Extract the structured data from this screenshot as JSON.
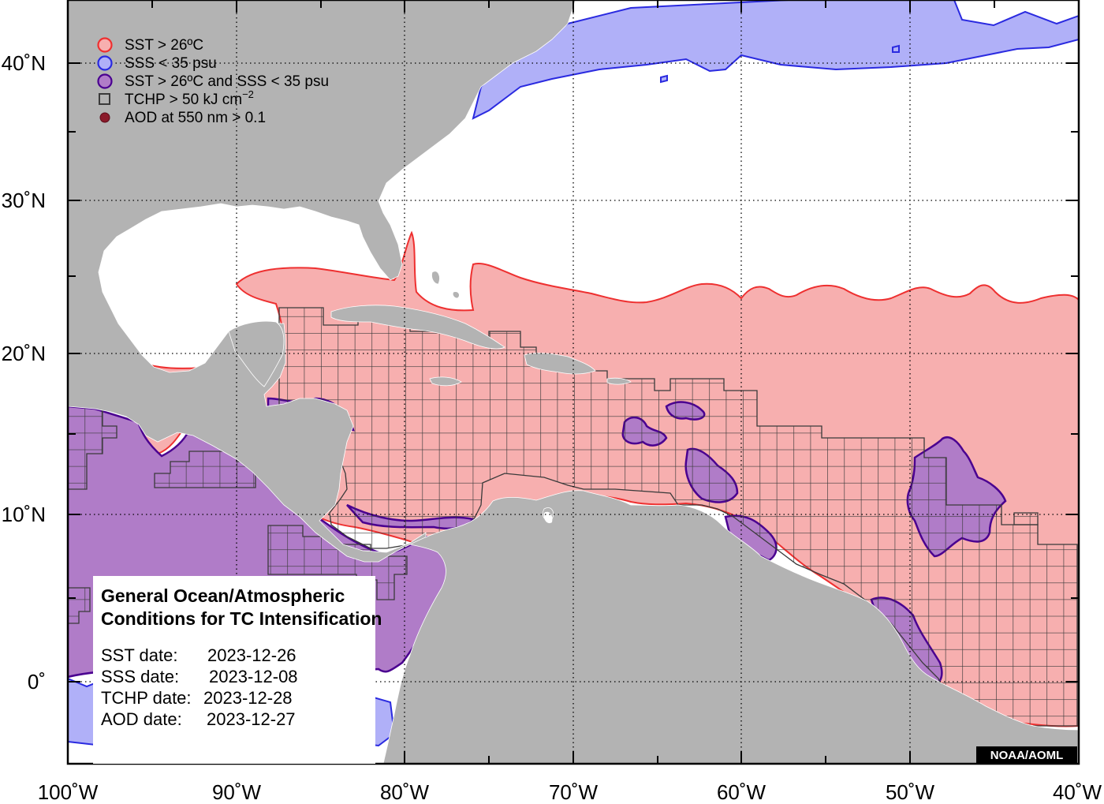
{
  "map": {
    "longitude_labels": [
      "100˚W",
      "90˚W",
      "80˚W",
      "70˚W",
      "60˚W",
      "50˚W",
      "40˚W"
    ],
    "latitude_labels": [
      "40˚N",
      "30˚N",
      "20˚N",
      "10˚N",
      "0˚"
    ],
    "extent": {
      "lon_min": -100,
      "lon_max": -40,
      "lat_min": -5,
      "lat_max": 44
    },
    "grid": "dotted",
    "colors": {
      "land": "#b3b3b3",
      "ocean": "#ffffff",
      "sst_fill": "#f7afaf",
      "sst_edge": "#ee3030",
      "sss_fill": "#b0b0f8",
      "sss_edge": "#2a2ae0",
      "both_fill": "#b07cc8",
      "both_edge": "#4a0090",
      "tchp_box": "#3a3a3a"
    }
  },
  "legend": {
    "items": [
      {
        "label": "SST > 26ºC",
        "symbol": "circle-red"
      },
      {
        "label": "SSS < 35 psu",
        "symbol": "circle-blue"
      },
      {
        "label": "SST > 26ºC and SSS < 35 psu",
        "symbol": "circle-purple"
      },
      {
        "label": "TCHP > 50 kJ cm",
        "superscript": "−2",
        "symbol": "open-square"
      },
      {
        "label": "AOD at 550 nm > 0.1",
        "symbol": "filled-dot-darkred"
      }
    ]
  },
  "info_box": {
    "title_line1": "General Ocean/Atmospheric",
    "title_line2": "Conditions for TC Intensification",
    "rows": [
      {
        "label": "SST date:",
        "value": "2023-12-26"
      },
      {
        "label": "SSS date:",
        "value": "2023-12-08"
      },
      {
        "label": "TCHP date:",
        "value": "2023-12-28"
      },
      {
        "label": "AOD date:",
        "value": "2023-12-27"
      }
    ]
  },
  "credit": "NOAA/AOML"
}
